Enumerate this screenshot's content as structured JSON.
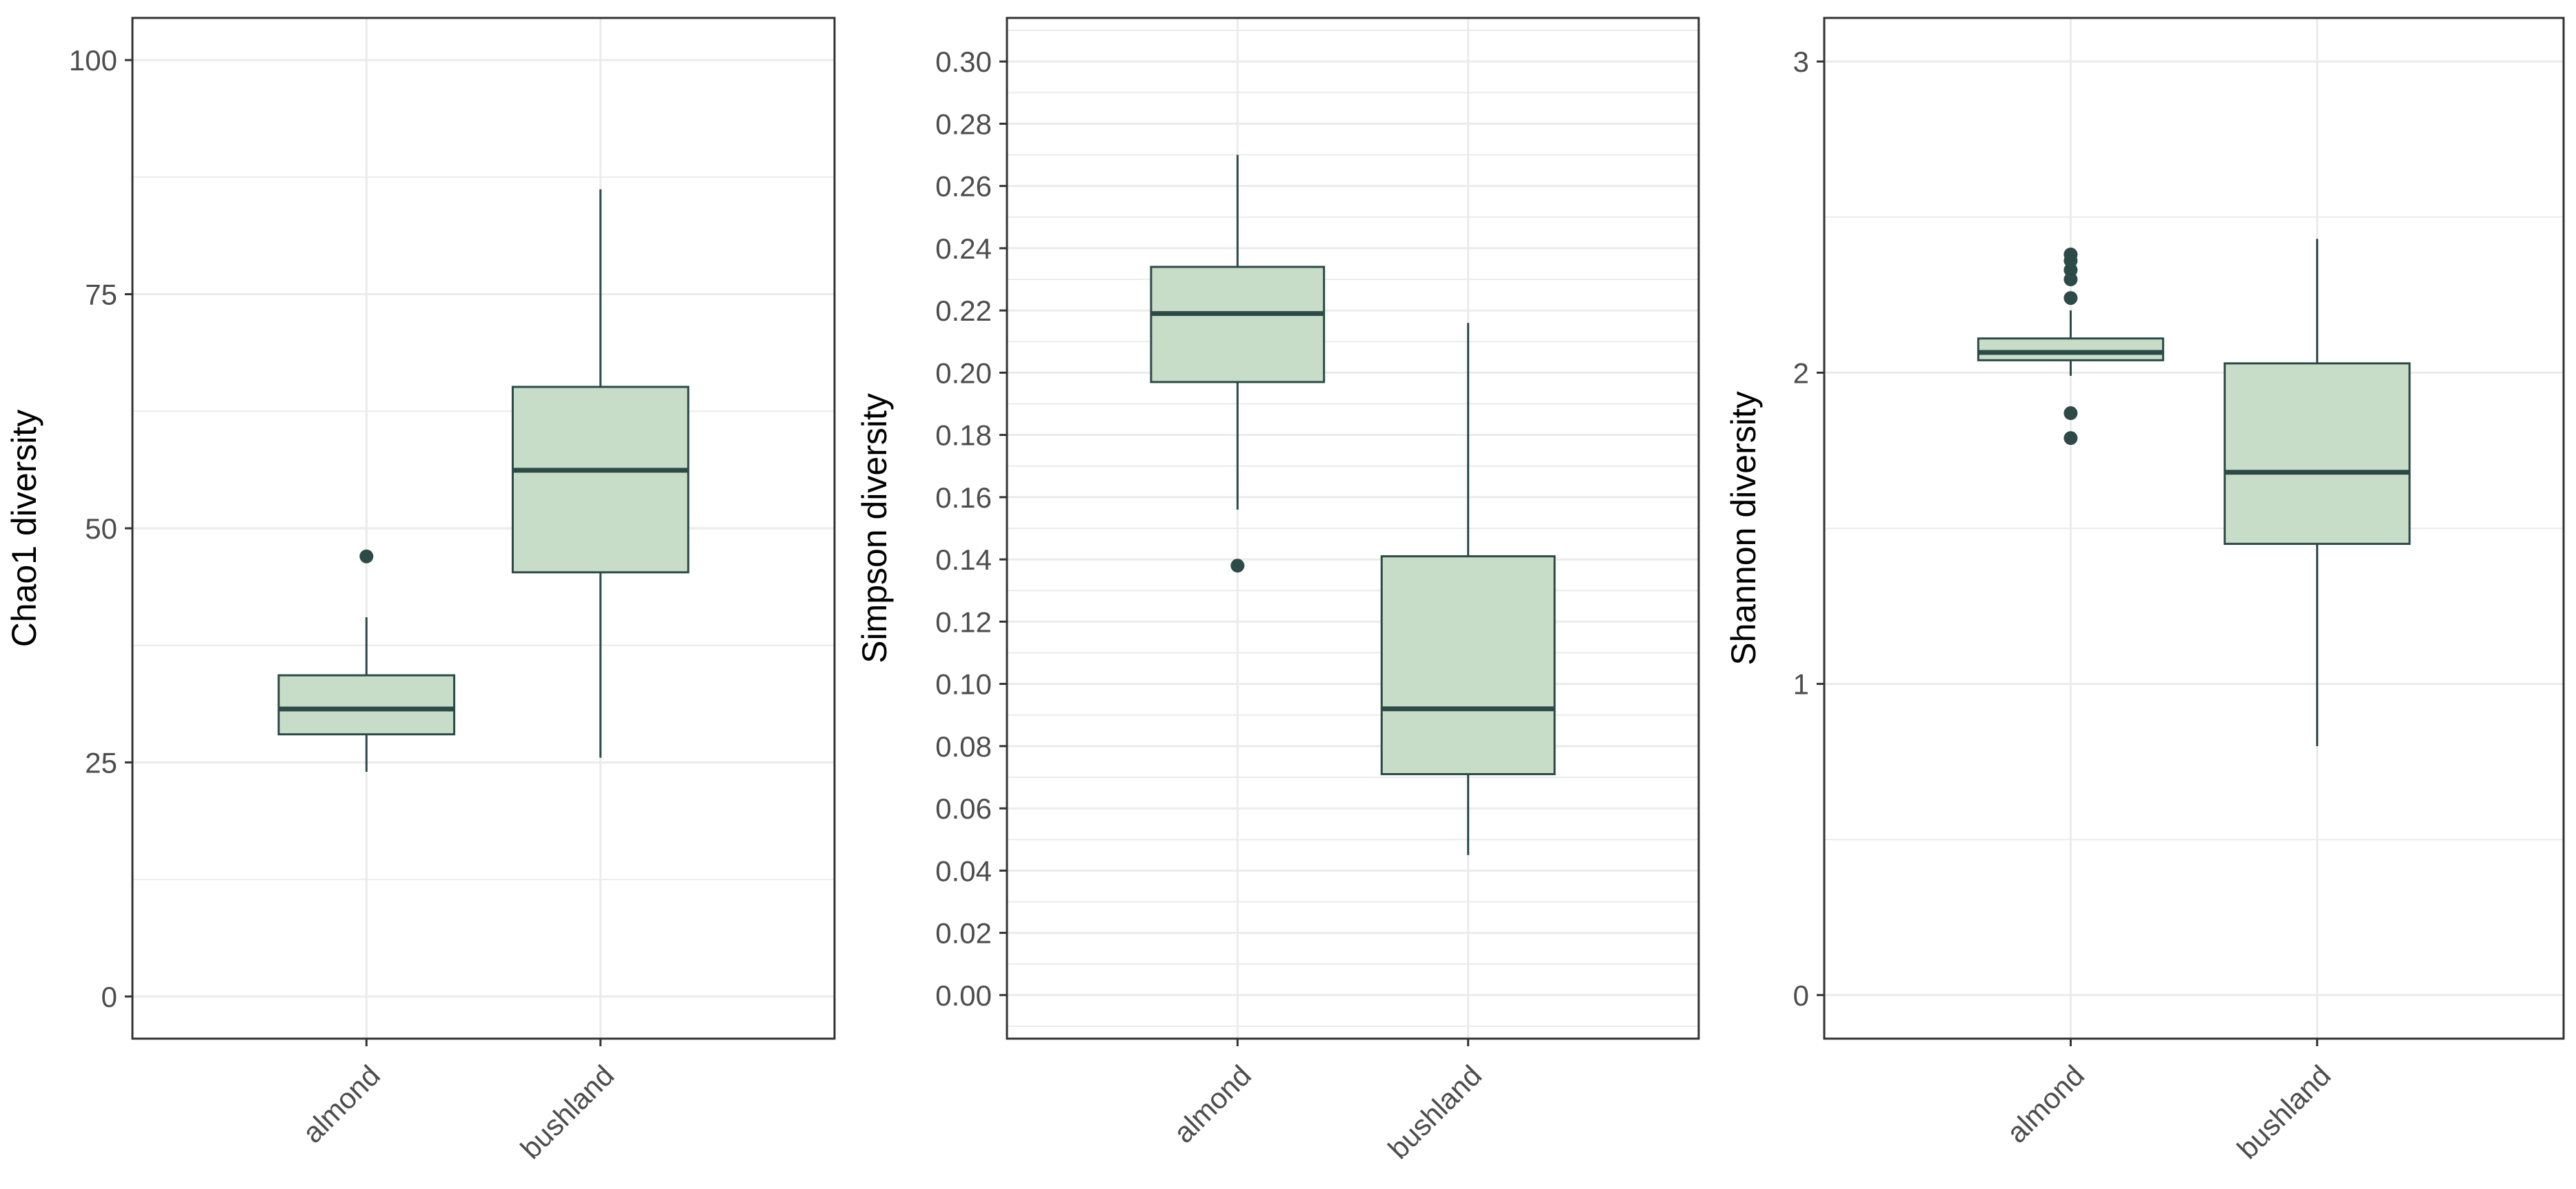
{
  "colors": {
    "box_fill": "#c8ddc8",
    "box_stroke": "#2c4a47",
    "grid": "#ebebeb",
    "panel_border": "#333333",
    "tick_text": "#4d4d4d",
    "axis_title": "#000000",
    "background": "#ffffff"
  },
  "chart_data": [
    {
      "type": "boxplot",
      "title": "",
      "xlabel": "",
      "ylabel": "Chao1 diversity",
      "categories": [
        "almond",
        "bushland"
      ],
      "ylim": [
        -4.5,
        104.5
      ],
      "yticks": [
        0,
        25,
        50,
        75,
        100
      ],
      "ytick_labels": [
        "0",
        "25",
        "50",
        "75",
        "100"
      ],
      "minor_yticks": [
        12.5,
        37.5,
        62.5,
        87.5
      ],
      "grid": true,
      "boxes": [
        {
          "category": "almond",
          "min": 24,
          "q1": 28,
          "median": 30.7,
          "q3": 34.3,
          "max": 40.5,
          "outliers": [
            47
          ]
        },
        {
          "category": "bushland",
          "min": 25.5,
          "q1": 45.3,
          "median": 56.2,
          "q3": 65.1,
          "max": 86.2,
          "outliers": []
        }
      ]
    },
    {
      "type": "boxplot",
      "title": "",
      "xlabel": "",
      "ylabel": "Simpson diversity",
      "categories": [
        "almond",
        "bushland"
      ],
      "ylim": [
        -0.014,
        0.314
      ],
      "yticks": [
        0.0,
        0.02,
        0.04,
        0.06,
        0.08,
        0.1,
        0.12,
        0.14,
        0.16,
        0.18,
        0.2,
        0.22,
        0.24,
        0.26,
        0.28,
        0.3
      ],
      "ytick_labels": [
        "0.00",
        "0.02",
        "0.04",
        "0.06",
        "0.08",
        "0.10",
        "0.12",
        "0.14",
        "0.16",
        "0.18",
        "0.20",
        "0.22",
        "0.24",
        "0.26",
        "0.28",
        "0.30"
      ],
      "minor_yticks": [
        -0.01,
        0.01,
        0.03,
        0.05,
        0.07,
        0.09,
        0.11,
        0.13,
        0.15,
        0.17,
        0.19,
        0.21,
        0.23,
        0.25,
        0.27,
        0.29,
        0.31
      ],
      "grid": true,
      "boxes": [
        {
          "category": "almond",
          "min": 0.156,
          "q1": 0.197,
          "median": 0.219,
          "q3": 0.234,
          "max": 0.27,
          "outliers": [
            0.138
          ]
        },
        {
          "category": "bushland",
          "min": 0.045,
          "q1": 0.071,
          "median": 0.092,
          "q3": 0.141,
          "max": 0.216,
          "outliers": []
        }
      ]
    },
    {
      "type": "boxplot",
      "title": "",
      "xlabel": "",
      "ylabel": "Shannon diversity",
      "categories": [
        "almond",
        "bushland"
      ],
      "ylim": [
        -0.14,
        3.14
      ],
      "yticks": [
        0,
        1,
        2,
        3
      ],
      "ytick_labels": [
        "0",
        "1",
        "2",
        "3"
      ],
      "minor_yticks": [
        0.5,
        1.5,
        2.5
      ],
      "grid": true,
      "boxes": [
        {
          "category": "almond",
          "min": 1.99,
          "q1": 2.04,
          "median": 2.065,
          "q3": 2.11,
          "max": 2.2,
          "outliers": [
            2.24,
            2.3,
            2.33,
            2.36,
            2.38,
            1.87,
            1.79
          ]
        },
        {
          "category": "bushland",
          "min": 0.8,
          "q1": 1.45,
          "median": 1.68,
          "q3": 2.03,
          "max": 2.43,
          "outliers": []
        }
      ]
    }
  ]
}
